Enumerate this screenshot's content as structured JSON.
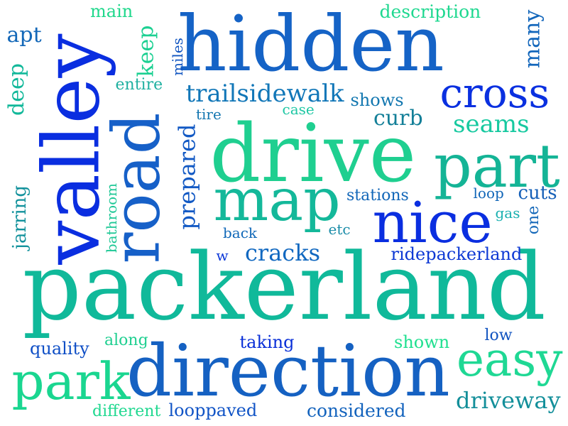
{
  "words": [
    {
      "id": "packerland",
      "text": "packerland",
      "color": "#10b99a"
    },
    {
      "id": "direction",
      "text": "direction",
      "color": "#1561c2"
    },
    {
      "id": "drive",
      "text": "drive",
      "color": "#1fcf90"
    },
    {
      "id": "hidden",
      "text": "hidden",
      "color": "#1563c6"
    },
    {
      "id": "valley",
      "text": "valley",
      "color": "#0a2ee0"
    },
    {
      "id": "road",
      "text": "road",
      "color": "#1660c8"
    },
    {
      "id": "map",
      "text": "map",
      "color": "#14b89a"
    },
    {
      "id": "part",
      "text": "part",
      "color": "#14b496"
    },
    {
      "id": "nice",
      "text": "nice",
      "color": "#0a2ee0"
    },
    {
      "id": "cross",
      "text": "cross",
      "color": "#0a30e0"
    },
    {
      "id": "easy",
      "text": "easy",
      "color": "#1fd894"
    },
    {
      "id": "park",
      "text": "park",
      "color": "#1ad690"
    },
    {
      "id": "trailsidewalk",
      "text": "trailsidewalk",
      "color": "#1277b8"
    },
    {
      "id": "cracks",
      "text": "cracks",
      "color": "#1168c0"
    },
    {
      "id": "seams",
      "text": "seams",
      "color": "#17c9a0"
    },
    {
      "id": "curb",
      "text": "curb",
      "color": "#137f98"
    },
    {
      "id": "driveway",
      "text": "driveway",
      "color": "#138f9a"
    },
    {
      "id": "prepared",
      "text": "prepared",
      "color": "#1259c4"
    },
    {
      "id": "ridepackerland",
      "text": "ridepackerland",
      "color": "#0d38d4"
    },
    {
      "id": "considered",
      "text": "considered",
      "color": "#1363bd"
    },
    {
      "id": "looppaved",
      "text": "looppaved",
      "color": "#1154c6"
    },
    {
      "id": "description",
      "text": "description",
      "color": "#1fd890"
    },
    {
      "id": "cuts",
      "text": "cuts",
      "color": "#1660b8"
    },
    {
      "id": "many",
      "text": "many",
      "color": "#1266bb"
    },
    {
      "id": "keep",
      "text": "keep",
      "color": "#1cd092"
    },
    {
      "id": "deep",
      "text": "deep",
      "color": "#12b89a"
    },
    {
      "id": "apt",
      "text": "apt",
      "color": "#1468b8"
    },
    {
      "id": "main",
      "text": "main",
      "color": "#20d88c"
    },
    {
      "id": "jarring",
      "text": "jarring",
      "color": "#13929c"
    },
    {
      "id": "quality",
      "text": "quality",
      "color": "#0f4fc6"
    },
    {
      "id": "different",
      "text": "different",
      "color": "#20d890"
    },
    {
      "id": "shown",
      "text": "shown",
      "color": "#20e090"
    },
    {
      "id": "along",
      "text": "along",
      "color": "#1fcf90"
    },
    {
      "id": "taking",
      "text": "taking",
      "color": "#0a30d8"
    },
    {
      "id": "low",
      "text": "low",
      "color": "#1254c0"
    },
    {
      "id": "stations",
      "text": "stations",
      "color": "#1166b8"
    },
    {
      "id": "shows",
      "text": "shows",
      "color": "#1277b0"
    },
    {
      "id": "case",
      "text": "case",
      "color": "#1fc7a4"
    },
    {
      "id": "tire",
      "text": "tire",
      "color": "#1376b0"
    },
    {
      "id": "entire",
      "text": "entire",
      "color": "#1fb0a0"
    },
    {
      "id": "miles",
      "text": "miles",
      "color": "#1155c0"
    },
    {
      "id": "bathroom",
      "text": "bathroom",
      "color": "#1fc896"
    },
    {
      "id": "back",
      "text": "back",
      "color": "#1068b8"
    },
    {
      "id": "etc",
      "text": "etc",
      "color": "#1a8ca8"
    },
    {
      "id": "w",
      "text": "w",
      "color": "#0a36d8"
    },
    {
      "id": "loop",
      "text": "loop",
      "color": "#1166b8"
    },
    {
      "id": "gas",
      "text": "gas",
      "color": "#1ab0b0"
    },
    {
      "id": "one",
      "text": "one",
      "color": "#1266b8"
    }
  ]
}
